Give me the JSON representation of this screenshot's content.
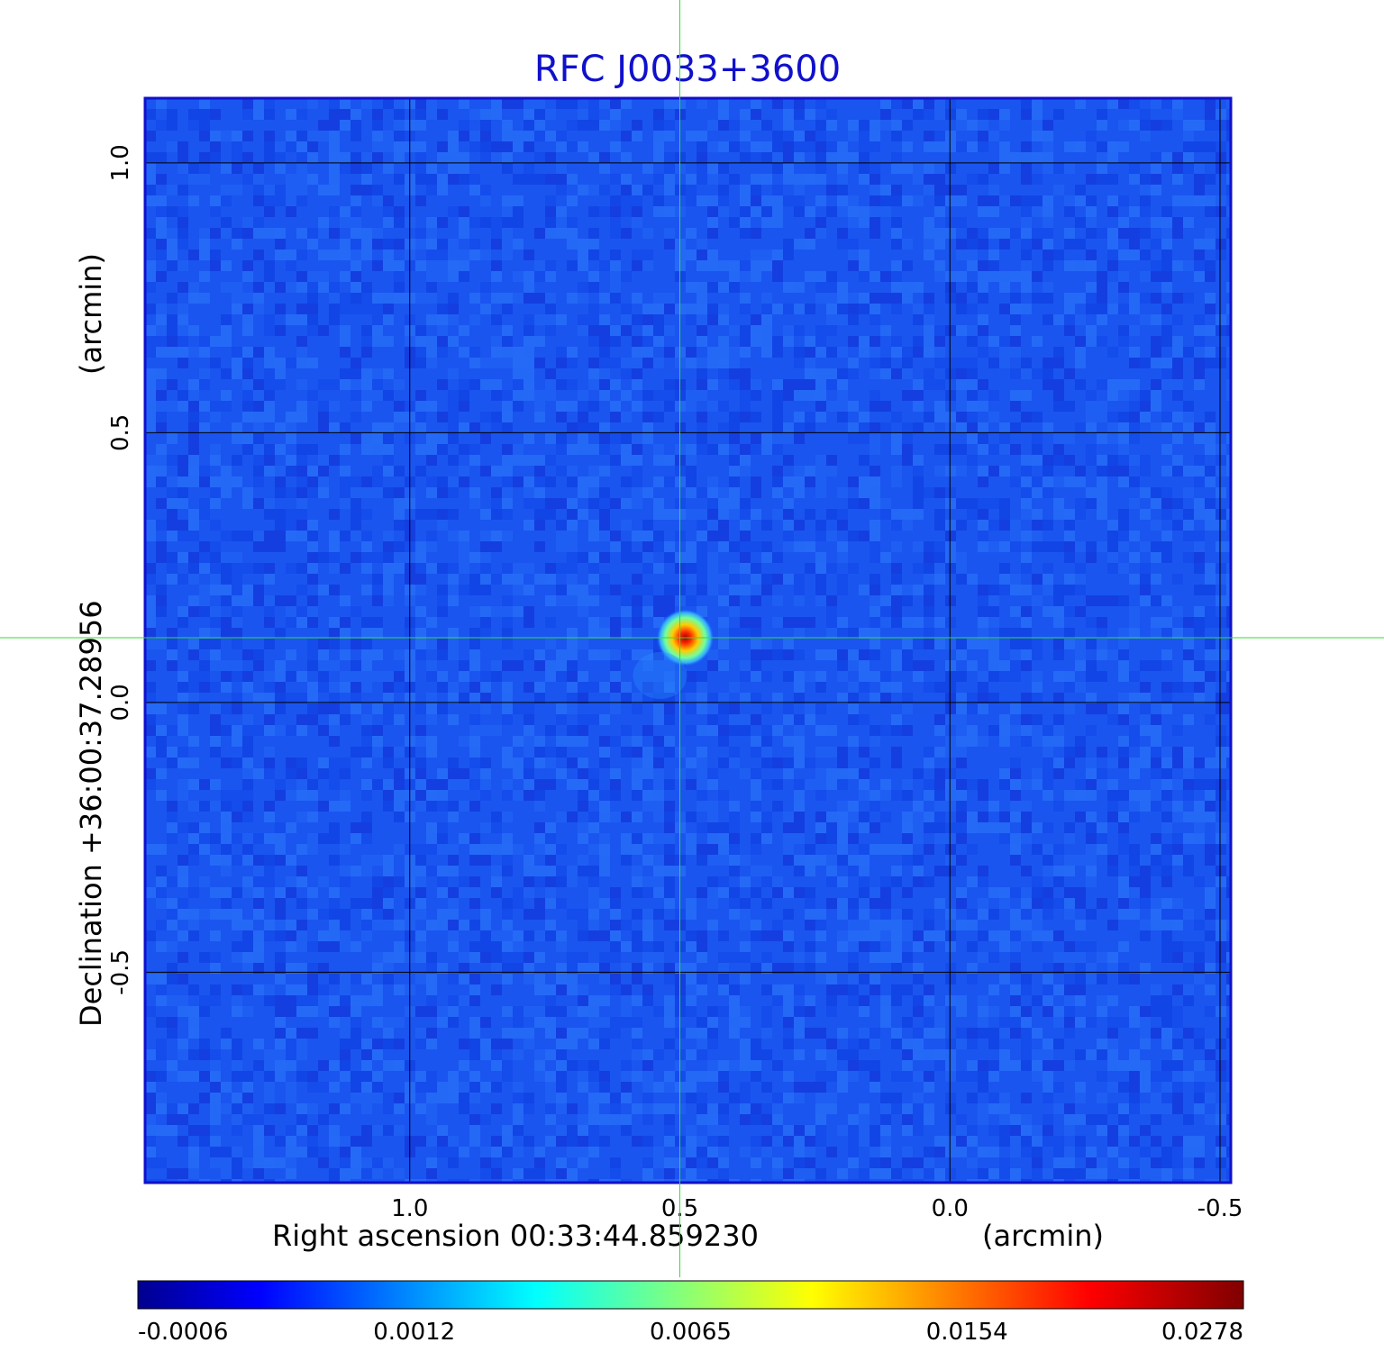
{
  "chart_data": {
    "type": "heatmap",
    "title": "RFC J0033+3600",
    "xlabel": "Right ascension  00:33:44.859230",
    "xunit": "(arcmin)",
    "ylabel": "Declination  +36:00:37.28956",
    "yunit": "(arcmin)",
    "xlim": [
      1.49,
      -0.52
    ],
    "ylim": [
      -0.89,
      1.12
    ],
    "x_ticks": [
      {
        "value": 1.0,
        "label": "1.0"
      },
      {
        "value": 0.5,
        "label": "0.5"
      },
      {
        "value": 0.0,
        "label": "0.0"
      },
      {
        "value": -0.5,
        "label": "-0.5"
      }
    ],
    "y_ticks": [
      {
        "value": 1.0,
        "label": "1.0"
      },
      {
        "value": 0.5,
        "label": "0.5"
      },
      {
        "value": 0.0,
        "label": "0.0"
      },
      {
        "value": -0.5,
        "label": "-0.5"
      }
    ],
    "grid": true,
    "source": {
      "x": 0.49,
      "y": 0.12,
      "peak": 0.0278
    },
    "crosshair": {
      "x": 0.5,
      "y": 0.12,
      "color": "#33dd33"
    },
    "colorbar": {
      "ticks": [
        "-0.0006",
        "0.0012",
        "0.0065",
        "0.0154",
        "0.0278"
      ],
      "colormap": "jet",
      "colors": [
        "#00008f",
        "#0000ff",
        "#00ffff",
        "#ffff00",
        "#ff0000",
        "#800000"
      ]
    },
    "frame_color": "#1010cc"
  }
}
